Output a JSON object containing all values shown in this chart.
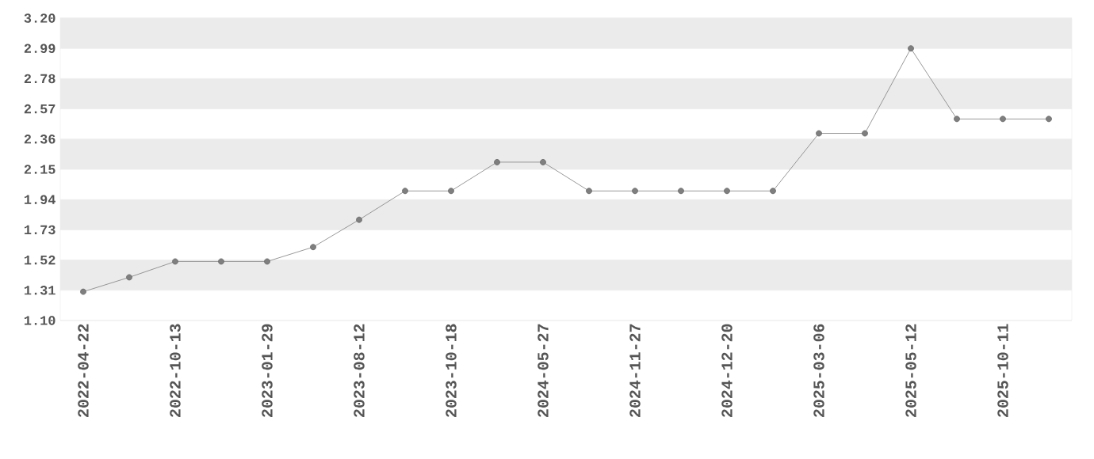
{
  "chart_data": {
    "type": "line",
    "categories": [
      "2022-04-22",
      null,
      "2022-10-13",
      null,
      "2023-01-29",
      null,
      "2023-08-12",
      null,
      "2023-10-18",
      null,
      "2024-05-27",
      null,
      "2024-11-27",
      null,
      "2024-12-20",
      null,
      "2025-03-06",
      null,
      "2025-05-12",
      null,
      "2025-10-11",
      null
    ],
    "values": [
      1.3,
      1.4,
      1.51,
      1.51,
      1.51,
      1.61,
      1.8,
      2.0,
      2.0,
      2.2,
      2.2,
      2.0,
      2.0,
      2.0,
      2.0,
      2.0,
      2.4,
      2.4,
      2.99,
      2.5,
      2.5,
      2.5
    ],
    "color": "#7f7f7f",
    "ylim": [
      1.1,
      3.2
    ],
    "yticks": [
      {
        "value": 1.1,
        "label": "1.10"
      },
      1.31,
      1.52,
      1.73,
      1.94,
      2.15,
      2.36,
      2.57,
      2.99,
      {
        "value": 3.2,
        "label": "3.20"
      },
      2.78
    ],
    "grid": "y",
    "marker": "circle",
    "line_style": "solid"
  }
}
